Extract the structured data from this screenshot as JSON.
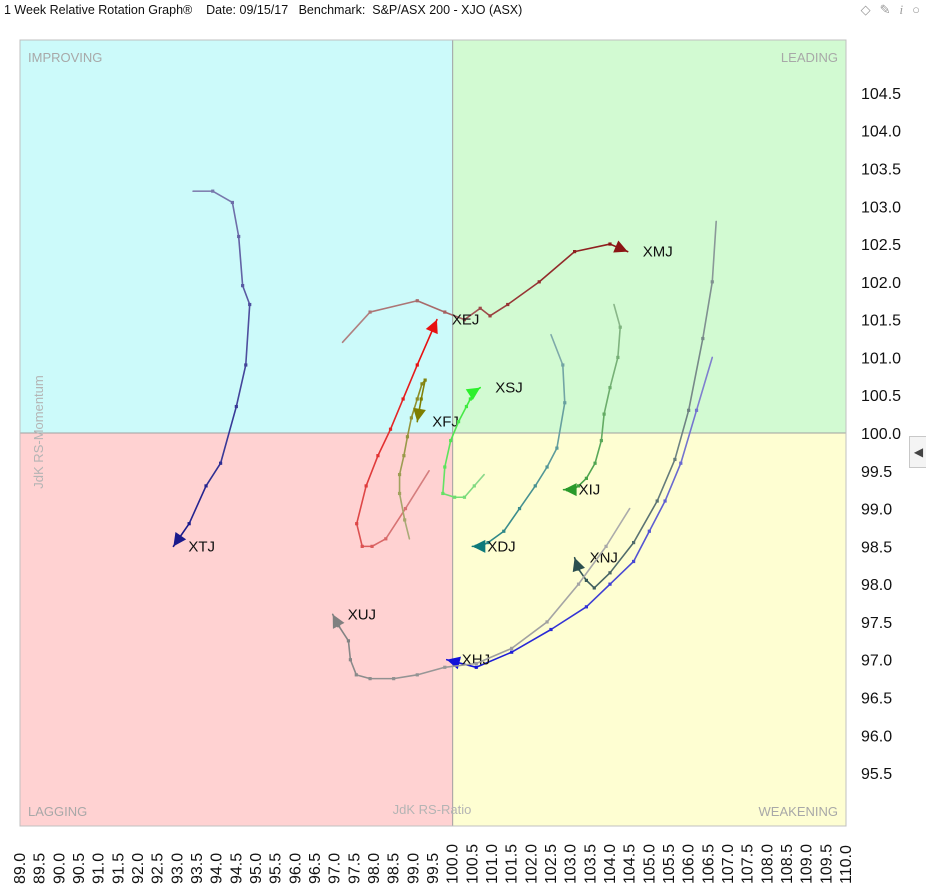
{
  "window": {
    "title": "1 Week Relative Rotation Graph®",
    "date": "Date: 09/15/17",
    "benchmark": "Benchmark:  S&P/ASX 200 - XJO (ASX)",
    "icons": [
      "diamond-icon",
      "pin-icon",
      "info-icon",
      "close-icon"
    ]
  },
  "chart_data": {
    "type": "scatter",
    "xlabel": "JdK RS-Ratio",
    "ylabel": "JdK RS-Momentum",
    "xlim": [
      89.0,
      110.0
    ],
    "ylim": [
      94.8,
      105.2
    ],
    "center": [
      100.0,
      100.0
    ],
    "x_ticks": [
      "89.0",
      "89.5",
      "90.0",
      "90.5",
      "91.0",
      "91.5",
      "92.0",
      "92.5",
      "93.0",
      "93.5",
      "94.0",
      "94.5",
      "95.0",
      "95.5",
      "96.0",
      "96.5",
      "97.0",
      "97.5",
      "98.0",
      "98.5",
      "99.0",
      "99.5",
      "100.0",
      "100.5",
      "101.0",
      "101.5",
      "102.0",
      "102.5",
      "103.0",
      "103.5",
      "104.0",
      "104.5",
      "105.0",
      "105.5",
      "106.0",
      "106.5",
      "107.0",
      "107.5",
      "108.0",
      "108.5",
      "109.0",
      "109.5",
      "110.0"
    ],
    "y_ticks": [
      "104.5",
      "104.0",
      "103.5",
      "103.0",
      "102.5",
      "102.0",
      "101.5",
      "101.0",
      "100.5",
      "100.0",
      "99.5",
      "99.0",
      "98.5",
      "98.0",
      "97.5",
      "97.0",
      "96.5",
      "96.0",
      "95.5"
    ],
    "quadrants": [
      {
        "name": "IMPROVING",
        "color": "#ccfafa"
      },
      {
        "name": "LEADING",
        "color": "#d2fad2"
      },
      {
        "name": "LAGGING",
        "color": "#ffd2d2"
      },
      {
        "name": "WEAKENING",
        "color": "#fefed2"
      }
    ],
    "series": [
      {
        "name": "XTJ",
        "color": "#1a1a8c",
        "points": [
          [
            93.4,
            103.2
          ],
          [
            93.9,
            103.2
          ],
          [
            94.4,
            103.05
          ],
          [
            94.56,
            102.6
          ],
          [
            94.66,
            101.95
          ],
          [
            94.84,
            101.7
          ],
          [
            94.74,
            100.9
          ],
          [
            94.5,
            100.35
          ],
          [
            94.1,
            99.6
          ],
          [
            93.73,
            99.3
          ],
          [
            93.3,
            98.8
          ],
          [
            92.9,
            98.5
          ]
        ]
      },
      {
        "name": "XMJ",
        "color": "#8b1414",
        "points": [
          [
            97.2,
            101.2
          ],
          [
            97.9,
            101.6
          ],
          [
            99.1,
            101.75
          ],
          [
            99.8,
            101.6
          ],
          [
            100.3,
            101.5
          ],
          [
            100.7,
            101.65
          ],
          [
            100.95,
            101.55
          ],
          [
            101.4,
            101.7
          ],
          [
            102.2,
            102.0
          ],
          [
            103.1,
            102.4
          ],
          [
            104.0,
            102.5
          ],
          [
            104.45,
            102.4
          ]
        ]
      },
      {
        "name": "XEJ",
        "color": "#e81010",
        "points": [
          [
            99.4,
            99.5
          ],
          [
            98.8,
            99.0
          ],
          [
            98.3,
            98.6
          ],
          [
            97.95,
            98.5
          ],
          [
            97.7,
            98.5
          ],
          [
            97.56,
            98.8
          ],
          [
            97.8,
            99.3
          ],
          [
            98.1,
            99.7
          ],
          [
            98.42,
            100.05
          ],
          [
            98.74,
            100.45
          ],
          [
            99.1,
            100.9
          ],
          [
            99.6,
            101.5
          ]
        ]
      },
      {
        "name": "XFJ",
        "color": "#7e7e00",
        "points": [
          [
            98.9,
            98.6
          ],
          [
            98.78,
            98.85
          ],
          [
            98.65,
            99.2
          ],
          [
            98.65,
            99.45
          ],
          [
            98.76,
            99.7
          ],
          [
            98.85,
            99.95
          ],
          [
            98.95,
            100.2
          ],
          [
            99.1,
            100.45
          ],
          [
            99.22,
            100.65
          ],
          [
            99.3,
            100.7
          ],
          [
            99.2,
            100.45
          ],
          [
            99.1,
            100.15
          ]
        ]
      },
      {
        "name": "XSJ",
        "color": "#2cf02c",
        "points": [
          [
            100.8,
            99.45
          ],
          [
            100.55,
            99.3
          ],
          [
            100.3,
            99.15
          ],
          [
            100.05,
            99.15
          ],
          [
            99.75,
            99.2
          ],
          [
            99.8,
            99.55
          ],
          [
            99.95,
            99.9
          ],
          [
            100.15,
            100.15
          ],
          [
            100.35,
            100.35
          ],
          [
            100.45,
            100.45
          ],
          [
            100.55,
            100.55
          ],
          [
            100.7,
            100.6
          ]
        ]
      },
      {
        "name": "XDJ",
        "color": "#0e7a7a",
        "points": [
          [
            102.5,
            101.3
          ],
          [
            102.8,
            100.9
          ],
          [
            102.85,
            100.4
          ],
          [
            102.65,
            99.8
          ],
          [
            102.4,
            99.55
          ],
          [
            102.1,
            99.3
          ],
          [
            101.7,
            99.0
          ],
          [
            101.3,
            98.7
          ],
          [
            100.9,
            98.55
          ],
          [
            100.7,
            98.5
          ],
          [
            100.6,
            98.5
          ],
          [
            100.5,
            98.5
          ]
        ]
      },
      {
        "name": "XIJ",
        "color": "#2a9a2a",
        "points": [
          [
            104.1,
            101.7
          ],
          [
            104.26,
            101.4
          ],
          [
            104.2,
            101.0
          ],
          [
            104.0,
            100.6
          ],
          [
            103.85,
            100.25
          ],
          [
            103.78,
            99.9
          ],
          [
            103.62,
            99.6
          ],
          [
            103.4,
            99.4
          ],
          [
            103.2,
            99.3
          ],
          [
            103.06,
            99.25
          ],
          [
            102.92,
            99.25
          ],
          [
            102.82,
            99.25
          ]
        ]
      },
      {
        "name": "XNJ",
        "color": "#2c4f4f",
        "points": [
          [
            106.7,
            102.8
          ],
          [
            106.6,
            102.0
          ],
          [
            106.36,
            101.25
          ],
          [
            106.0,
            100.3
          ],
          [
            105.65,
            99.65
          ],
          [
            105.2,
            99.1
          ],
          [
            104.6,
            98.55
          ],
          [
            104.0,
            98.15
          ],
          [
            103.6,
            97.95
          ],
          [
            103.4,
            98.05
          ],
          [
            103.2,
            98.2
          ],
          [
            103.1,
            98.35
          ]
        ]
      },
      {
        "name": "XHJ",
        "color": "#1212d8",
        "points": [
          [
            106.6,
            101.0
          ],
          [
            106.2,
            100.3
          ],
          [
            105.8,
            99.6
          ],
          [
            105.4,
            99.1
          ],
          [
            105.0,
            98.7
          ],
          [
            104.6,
            98.3
          ],
          [
            104.0,
            98.0
          ],
          [
            103.4,
            97.7
          ],
          [
            102.5,
            97.4
          ],
          [
            101.5,
            97.1
          ],
          [
            100.6,
            96.9
          ],
          [
            99.85,
            97.0
          ]
        ]
      },
      {
        "name": "XUJ",
        "color": "#808080",
        "points": [
          [
            104.5,
            99.0
          ],
          [
            103.9,
            98.5
          ],
          [
            103.2,
            98.0
          ],
          [
            102.4,
            97.5
          ],
          [
            101.5,
            97.15
          ],
          [
            100.6,
            96.95
          ],
          [
            99.8,
            96.9
          ],
          [
            99.1,
            96.8
          ],
          [
            98.5,
            96.75
          ],
          [
            97.9,
            96.75
          ],
          [
            97.55,
            96.8
          ],
          [
            97.4,
            97.0
          ],
          [
            97.35,
            97.25
          ],
          [
            97.1,
            97.45
          ],
          [
            96.95,
            97.6
          ]
        ]
      }
    ]
  }
}
